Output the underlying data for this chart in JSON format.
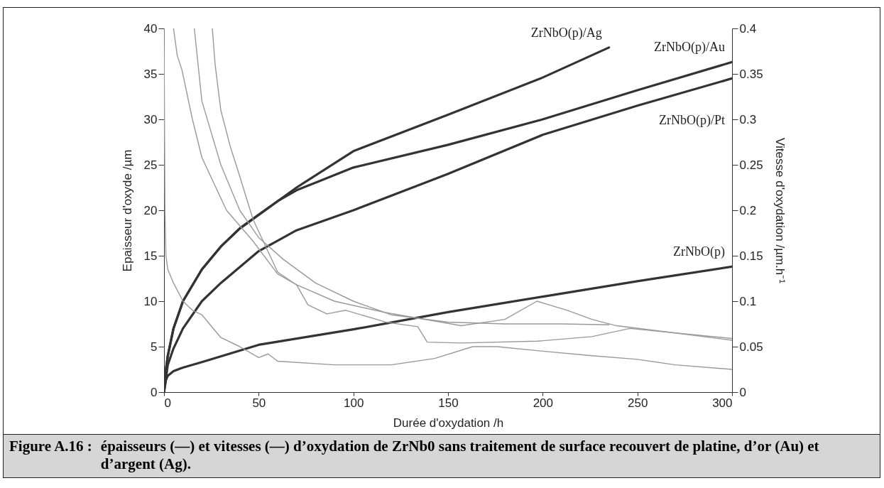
{
  "chart_data": {
    "type": "line",
    "xlabel": "Durée d'oxydation /h",
    "ylabel": "Epaisseur d'oxyde /µm",
    "y2label": "Vitesse d'oxydation /µm.h⁻¹",
    "xlim": [
      0,
      300
    ],
    "xticks": [
      0,
      50,
      100,
      150,
      200,
      250,
      300
    ],
    "ylim": [
      0,
      40
    ],
    "yticks": [
      0,
      5,
      10,
      15,
      20,
      25,
      30,
      35,
      40
    ],
    "y2lim": [
      0,
      0.4
    ],
    "y2ticks": [
      0,
      0.05,
      0.1,
      0.15,
      0.2,
      0.25,
      0.3,
      0.35,
      0.4
    ],
    "series": [
      {
        "type": "line",
        "name": "ZrNbO(p)/Ag",
        "axis": "y",
        "color": "#333333",
        "x": [
          0,
          1,
          2,
          5,
          10,
          20,
          30,
          40,
          50,
          60,
          70,
          100,
          150,
          200,
          235
        ],
        "values": [
          0,
          2.5,
          4,
          7,
          10,
          13.5,
          16,
          18,
          19.5,
          21,
          22.5,
          26.5,
          30.5,
          34.6,
          37.9
        ]
      },
      {
        "type": "line",
        "name": "ZrNbO(p)/Au",
        "axis": "y",
        "color": "#333333",
        "x": [
          0,
          1,
          2,
          5,
          10,
          20,
          30,
          40,
          50,
          60,
          70,
          100,
          150,
          200,
          250,
          300
        ],
        "values": [
          0,
          2.5,
          4,
          7,
          10,
          13.5,
          16,
          18,
          19.5,
          21,
          22.2,
          24.7,
          27.2,
          30,
          33.2,
          36.3
        ]
      },
      {
        "type": "line",
        "name": "ZrNbO(p)/Pt",
        "axis": "y",
        "color": "#333333",
        "x": [
          0,
          2,
          5,
          10,
          20,
          30,
          50,
          70,
          100,
          150,
          200,
          250,
          300
        ],
        "values": [
          0,
          3,
          4.8,
          7,
          10,
          12,
          15.5,
          17.8,
          20,
          24,
          28.3,
          31.5,
          34.5
        ]
      },
      {
        "type": "line",
        "name": "ZrNbO(p)",
        "axis": "y",
        "color": "#333333",
        "x": [
          0,
          1,
          2,
          5,
          10,
          20,
          50,
          100,
          150,
          200,
          250,
          300
        ],
        "values": [
          0,
          1.3,
          1.8,
          2.3,
          2.7,
          3.3,
          5.2,
          6.9,
          8.8,
          10.5,
          12.2,
          13.8
        ]
      },
      {
        "type": "line",
        "axis": "y2",
        "color": "#999999",
        "x": [
          16,
          20,
          30,
          40,
          50,
          63,
          80,
          100,
          120,
          150,
          180,
          210,
          235
        ],
        "values": [
          0.4,
          0.32,
          0.25,
          0.2,
          0.17,
          0.146,
          0.12,
          0.1,
          0.085,
          0.077,
          0.075,
          0.075,
          0.074
        ]
      },
      {
        "type": "line",
        "axis": "y2",
        "color": "#999999",
        "x": [
          25.5,
          27,
          30,
          35,
          39,
          47,
          60,
          70,
          76,
          86,
          96,
          117,
          134,
          139,
          157,
          197,
          226,
          246,
          300
        ],
        "values": [
          0.4,
          0.36,
          0.31,
          0.27,
          0.244,
          0.19,
          0.132,
          0.118,
          0.096,
          0.086,
          0.09,
          0.077,
          0.072,
          0.055,
          0.054,
          0.056,
          0.061,
          0.07,
          0.059
        ]
      },
      {
        "type": "line",
        "axis": "y2",
        "color": "#999999",
        "x": [
          5,
          7,
          9.4,
          15,
          20,
          33,
          47,
          60,
          70,
          90,
          117,
          157,
          180,
          197,
          213,
          226,
          239,
          270,
          300
        ],
        "values": [
          0.4,
          0.37,
          0.355,
          0.3,
          0.258,
          0.2,
          0.166,
          0.13,
          0.118,
          0.1,
          0.0875,
          0.073,
          0.08,
          0.1,
          0.09,
          0.08,
          0.073,
          0.065,
          0.057
        ]
      },
      {
        "type": "line",
        "axis": "y2",
        "color": "#999999",
        "x": [
          0,
          0.5,
          1,
          2,
          5,
          10,
          15,
          20,
          30,
          40,
          50,
          55,
          60,
          90,
          120,
          143,
          163,
          176,
          200,
          226,
          250,
          270,
          300
        ],
        "values": [
          0.4,
          0.2,
          0.15,
          0.135,
          0.12,
          0.1,
          0.09,
          0.085,
          0.06,
          0.05,
          0.038,
          0.042,
          0.034,
          0.03,
          0.03,
          0.037,
          0.05,
          0.05,
          0.045,
          0.04,
          0.036,
          0.03,
          0.025
        ]
      }
    ],
    "annotations": [
      "Figure A.16 : épaisseurs (—) et vitesses (—) d’oxydation de ZrNb0 sans traitement de surface recouvert de platine, d’or (Au) et d’argent (Ag)."
    ]
  }
}
